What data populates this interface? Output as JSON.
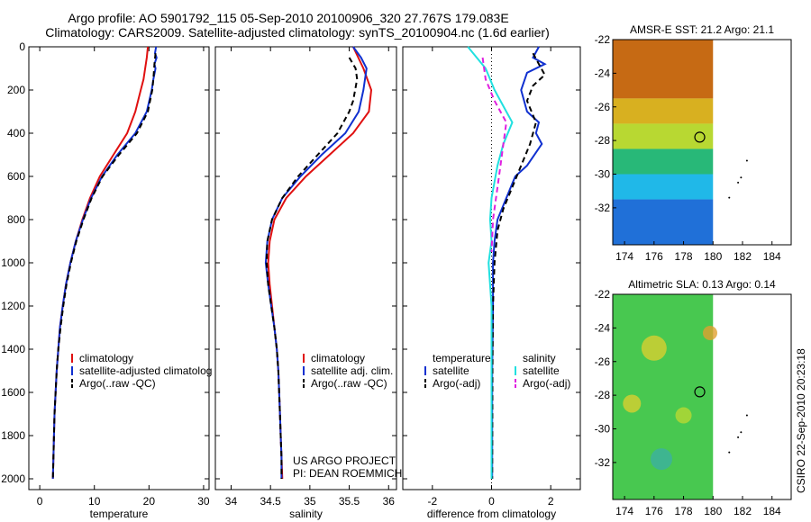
{
  "header": {
    "line1": "Argo profile: AO 5901792_115 05-Sep-2010 20100906_320 27.767S 179.083E",
    "line2": "Climatology: CARS2009. Satellite-adjusted climatology: synTS_20100904.nc (1.6d earlier)"
  },
  "side_credit": "CSIRO 22-Sep-2010 20:23:18",
  "project_note": [
    "US ARGO PROJECT",
    "PI: DEAN ROEMMICH"
  ],
  "colors": {
    "climatology": "#e01010",
    "satellite": "#1030d0",
    "argo": "#000000",
    "satellite_salinity_diff": "#20e0e0",
    "argo_salinity_diff": "#e020e0"
  },
  "chart_data": [
    {
      "id": "temperature",
      "type": "line",
      "xlabel": "temperature",
      "ylabel": "",
      "xlim": [
        -2,
        31
      ],
      "ylim": [
        2050,
        0
      ],
      "xticks": [
        0,
        10,
        20,
        30
      ],
      "yticks": [
        0,
        200,
        400,
        600,
        800,
        1000,
        1200,
        1400,
        1600,
        1800,
        2000
      ],
      "legend": [
        "climatology",
        "satellite-adjusted climatolog",
        "Argo(..raw -QC)"
      ],
      "series": [
        {
          "name": "climatology",
          "color": "#e01010",
          "dash": "",
          "points": [
            [
              19.8,
              0
            ],
            [
              19.6,
              50
            ],
            [
              19.3,
              100
            ],
            [
              19.0,
              150
            ],
            [
              18.5,
              200
            ],
            [
              17.5,
              300
            ],
            [
              16.0,
              400
            ],
            [
              13.5,
              500
            ],
            [
              11.0,
              600
            ],
            [
              9.2,
              700
            ],
            [
              7.8,
              800
            ],
            [
              6.6,
              900
            ],
            [
              5.6,
              1000
            ],
            [
              4.8,
              1100
            ],
            [
              4.2,
              1200
            ],
            [
              3.7,
              1300
            ],
            [
              3.4,
              1400
            ],
            [
              3.1,
              1500
            ],
            [
              2.9,
              1600
            ],
            [
              2.7,
              1700
            ],
            [
              2.6,
              1800
            ],
            [
              2.5,
              1900
            ],
            [
              2.4,
              2000
            ]
          ]
        },
        {
          "name": "satellite-adjusted climatolog",
          "color": "#1030d0",
          "dash": "",
          "points": [
            [
              21.3,
              0
            ],
            [
              21.1,
              30
            ],
            [
              21.4,
              50
            ],
            [
              21.0,
              80
            ],
            [
              21.2,
              100
            ],
            [
              20.8,
              150
            ],
            [
              20.5,
              200
            ],
            [
              19.6,
              300
            ],
            [
              17.5,
              400
            ],
            [
              14.2,
              500
            ],
            [
              11.4,
              600
            ],
            [
              9.4,
              700
            ],
            [
              7.9,
              800
            ],
            [
              6.6,
              900
            ],
            [
              5.6,
              1000
            ],
            [
              4.8,
              1100
            ],
            [
              4.2,
              1200
            ],
            [
              3.7,
              1300
            ],
            [
              3.4,
              1400
            ],
            [
              3.1,
              1500
            ],
            [
              2.9,
              1600
            ],
            [
              2.7,
              1700
            ],
            [
              2.6,
              1800
            ],
            [
              2.5,
              1900
            ],
            [
              2.4,
              2000
            ]
          ]
        },
        {
          "name": "Argo(..raw -QC)",
          "color": "#000000",
          "dash": "6,4",
          "points": [
            [
              21.2,
              30
            ],
            [
              21.0,
              80
            ],
            [
              20.8,
              150
            ],
            [
              20.6,
              200
            ],
            [
              19.8,
              300
            ],
            [
              17.8,
              400
            ],
            [
              14.5,
              500
            ],
            [
              11.5,
              600
            ],
            [
              9.5,
              700
            ],
            [
              8.0,
              800
            ],
            [
              6.7,
              900
            ],
            [
              5.7,
              1000
            ],
            [
              4.9,
              1100
            ],
            [
              4.3,
              1200
            ],
            [
              3.8,
              1300
            ],
            [
              3.4,
              1400
            ],
            [
              3.1,
              1500
            ],
            [
              2.9,
              1600
            ],
            [
              2.7,
              1700
            ],
            [
              2.6,
              1800
            ],
            [
              2.5,
              1900
            ],
            [
              2.4,
              2000
            ]
          ]
        }
      ]
    },
    {
      "id": "salinity",
      "type": "line",
      "xlabel": "salinity",
      "ylabel": "",
      "xlim": [
        33.8,
        36.1
      ],
      "ylim": [
        2050,
        0
      ],
      "xticks": [
        34,
        34.5,
        35,
        35.5,
        36
      ],
      "yticks": [],
      "legend": [
        "climatology",
        "satellite adj. clim.",
        "Argo(..raw -QC)"
      ],
      "series": [
        {
          "name": "climatology",
          "color": "#e01010",
          "dash": "",
          "points": [
            [
              35.55,
              0
            ],
            [
              35.68,
              100
            ],
            [
              35.78,
              200
            ],
            [
              35.75,
              300
            ],
            [
              35.55,
              400
            ],
            [
              35.25,
              500
            ],
            [
              34.95,
              600
            ],
            [
              34.7,
              700
            ],
            [
              34.55,
              800
            ],
            [
              34.49,
              900
            ],
            [
              34.47,
              1000
            ],
            [
              34.49,
              1100
            ],
            [
              34.52,
              1200
            ],
            [
              34.55,
              1300
            ],
            [
              34.58,
              1400
            ],
            [
              34.6,
              1500
            ],
            [
              34.61,
              1600
            ],
            [
              34.62,
              1700
            ],
            [
              34.63,
              1800
            ],
            [
              34.64,
              1900
            ],
            [
              34.65,
              2000
            ]
          ]
        },
        {
          "name": "satellite adj. clim.",
          "color": "#1030d0",
          "dash": "",
          "points": [
            [
              35.55,
              0
            ],
            [
              35.65,
              50
            ],
            [
              35.72,
              100
            ],
            [
              35.68,
              200
            ],
            [
              35.62,
              300
            ],
            [
              35.45,
              400
            ],
            [
              35.15,
              500
            ],
            [
              34.88,
              600
            ],
            [
              34.65,
              700
            ],
            [
              34.52,
              800
            ],
            [
              34.46,
              900
            ],
            [
              34.44,
              1000
            ],
            [
              34.47,
              1100
            ],
            [
              34.51,
              1200
            ],
            [
              34.55,
              1300
            ],
            [
              34.58,
              1400
            ],
            [
              34.6,
              1500
            ],
            [
              34.61,
              1600
            ],
            [
              34.62,
              1700
            ],
            [
              34.63,
              1800
            ],
            [
              34.64,
              1900
            ],
            [
              34.64,
              2000
            ]
          ]
        },
        {
          "name": "Argo(..raw -QC)",
          "color": "#000000",
          "dash": "6,4",
          "points": [
            [
              35.5,
              50
            ],
            [
              35.58,
              100
            ],
            [
              35.6,
              150
            ],
            [
              35.55,
              250
            ],
            [
              35.5,
              300
            ],
            [
              35.35,
              400
            ],
            [
              35.1,
              500
            ],
            [
              34.85,
              600
            ],
            [
              34.65,
              700
            ],
            [
              34.52,
              800
            ],
            [
              34.46,
              900
            ],
            [
              34.45,
              1000
            ],
            [
              34.47,
              1100
            ],
            [
              34.51,
              1200
            ],
            [
              34.55,
              1300
            ],
            [
              34.58,
              1400
            ],
            [
              34.6,
              1500
            ],
            [
              34.61,
              1600
            ],
            [
              34.62,
              1700
            ],
            [
              34.63,
              1800
            ],
            [
              34.64,
              1900
            ],
            [
              34.64,
              2000
            ]
          ]
        }
      ]
    },
    {
      "id": "difference",
      "type": "line",
      "xlabel": "difference from climatology",
      "ylabel": "",
      "xlim": [
        -3,
        3
      ],
      "ylim": [
        2050,
        0
      ],
      "xticks": [
        -2,
        0,
        2
      ],
      "yticks": [],
      "legend_titles": [
        "temperature",
        "salinity"
      ],
      "legend": [
        "satellite",
        "Argo(-adj)",
        "satellite",
        "Argo(-adj)"
      ],
      "series": [
        {
          "name": "temperature satellite",
          "color": "#1030d0",
          "dash": "",
          "points": [
            [
              1.6,
              0
            ],
            [
              1.4,
              50
            ],
            [
              1.8,
              80
            ],
            [
              1.2,
              120
            ],
            [
              1.0,
              200
            ],
            [
              1.2,
              300
            ],
            [
              1.6,
              350
            ],
            [
              1.5,
              400
            ],
            [
              1.7,
              450
            ],
            [
              1.2,
              550
            ],
            [
              0.8,
              600
            ],
            [
              0.5,
              700
            ],
            [
              0.2,
              800
            ],
            [
              0.1,
              900
            ],
            [
              0.05,
              1000
            ],
            [
              0.05,
              1200
            ],
            [
              0.02,
              1500
            ],
            [
              0.02,
              2000
            ]
          ]
        },
        {
          "name": "temperature Argo(-adj)",
          "color": "#000000",
          "dash": "6,4",
          "points": [
            [
              1.4,
              30
            ],
            [
              1.6,
              80
            ],
            [
              1.8,
              130
            ],
            [
              1.4,
              180
            ],
            [
              1.2,
              250
            ],
            [
              1.5,
              350
            ],
            [
              1.3,
              450
            ],
            [
              1.0,
              550
            ],
            [
              0.7,
              650
            ],
            [
              0.4,
              750
            ],
            [
              0.2,
              850
            ],
            [
              0.1,
              1000
            ],
            [
              0.05,
              1200
            ],
            [
              0.03,
              1500
            ],
            [
              0.02,
              2000
            ]
          ]
        },
        {
          "name": "salinity satellite",
          "color": "#20e0e0",
          "dash": "",
          "points": [
            [
              -0.8,
              0
            ],
            [
              -0.2,
              100
            ],
            [
              0.1,
              200
            ],
            [
              0.5,
              300
            ],
            [
              0.7,
              350
            ],
            [
              0.4,
              450
            ],
            [
              0.2,
              550
            ],
            [
              0.0,
              700
            ],
            [
              -0.05,
              800
            ],
            [
              0.0,
              900
            ],
            [
              -0.1,
              1000
            ],
            [
              0.0,
              1200
            ],
            [
              0.0,
              1500
            ],
            [
              0.0,
              2000
            ]
          ]
        },
        {
          "name": "salinity Argo(-adj)",
          "color": "#e020e0",
          "dash": "6,4",
          "points": [
            [
              -0.3,
              50
            ],
            [
              -0.2,
              150
            ],
            [
              0.1,
              250
            ],
            [
              0.5,
              350
            ],
            [
              0.4,
              450
            ],
            [
              0.3,
              550
            ],
            [
              0.2,
              650
            ],
            [
              0.05,
              800
            ],
            [
              0.0,
              950
            ]
          ]
        }
      ]
    }
  ],
  "maps": [
    {
      "id": "sst-map",
      "title": "AMSR-E SST: 21.2 Argo: 21.1",
      "xticks": [
        174,
        176,
        178,
        180,
        182,
        184
      ],
      "yticks": [
        -22,
        -24,
        -26,
        -28,
        -30,
        -32
      ],
      "xlim": [
        173.2,
        185.3
      ],
      "ylim": [
        -22,
        -34.2
      ],
      "marker": [
        179.1,
        -27.8
      ],
      "coverage_lon_max": 180,
      "color_bands": [
        {
          "from": -22,
          "to": -25.5,
          "color": "#c66a14"
        },
        {
          "from": -25.5,
          "to": -27,
          "color": "#d8b020"
        },
        {
          "from": -27,
          "to": -28.5,
          "color": "#b8d832"
        },
        {
          "from": -28.5,
          "to": -30,
          "color": "#28b878"
        },
        {
          "from": -30,
          "to": -31.5,
          "color": "#20b8e8"
        },
        {
          "from": -31.5,
          "to": -34.2,
          "color": "#2070d8"
        }
      ]
    },
    {
      "id": "sla-map",
      "title": "Altimetric SLA: 0.13 Argo: 0.14",
      "xticks": [
        174,
        176,
        178,
        180,
        182,
        184
      ],
      "yticks": [
        -22,
        -24,
        -26,
        -28,
        -30,
        -32
      ],
      "xlim": [
        173.2,
        185.3
      ],
      "ylim": [
        -22,
        -34.2
      ],
      "marker": [
        179.1,
        -27.8
      ],
      "coverage_lon_max": 180,
      "color_bands": [
        {
          "from": -22,
          "to": -34.2,
          "color": "#48c850"
        }
      ]
    }
  ]
}
